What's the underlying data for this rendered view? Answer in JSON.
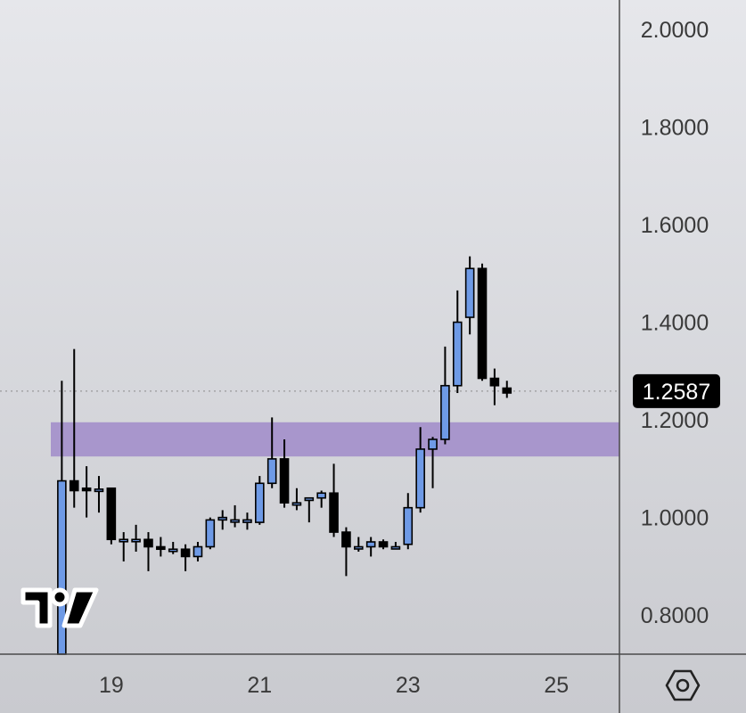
{
  "chart_data": {
    "type": "candlestick",
    "ylim": [
      0.72,
      2.06
    ],
    "y_ticks": [
      "2.0000",
      "1.8000",
      "1.6000",
      "1.4000",
      "1.2000",
      "1.0000",
      "0.8000"
    ],
    "x_ticks": [
      {
        "day": 19,
        "label": "19"
      },
      {
        "day": 21,
        "label": "21"
      },
      {
        "day": 23,
        "label": "23"
      },
      {
        "day": 25,
        "label": "25"
      }
    ],
    "x_range_days": [
      17.5,
      25.85
    ],
    "current_price": {
      "value": 1.2587,
      "label": "1.2587"
    },
    "zone": {
      "low": 1.125,
      "high": 1.195,
      "color": "#a38fca"
    },
    "colors": {
      "up": "#6e9ae6",
      "down": "#000000",
      "wick": "#000000",
      "background": "#d7d8dc"
    },
    "candles": [
      {
        "t": 18.3333,
        "o": 0.72,
        "h": 1.28,
        "l": 0.72,
        "c": 1.075
      },
      {
        "t": 18.5,
        "o": 1.075,
        "h": 1.345,
        "l": 1.02,
        "c": 1.055
      },
      {
        "t": 18.6667,
        "o": 1.06,
        "h": 1.105,
        "l": 1.0,
        "c": 1.055
      },
      {
        "t": 18.8333,
        "o": 1.058,
        "h": 1.085,
        "l": 1.01,
        "c": 1.058
      },
      {
        "t": 19.0,
        "o": 1.06,
        "h": 1.06,
        "l": 0.945,
        "c": 0.955
      },
      {
        "t": 19.1667,
        "o": 0.955,
        "h": 0.97,
        "l": 0.91,
        "c": 0.955
      },
      {
        "t": 19.3333,
        "o": 0.955,
        "h": 0.985,
        "l": 0.93,
        "c": 0.955
      },
      {
        "t": 19.5,
        "o": 0.955,
        "h": 0.97,
        "l": 0.89,
        "c": 0.94
      },
      {
        "t": 19.6667,
        "o": 0.94,
        "h": 0.96,
        "l": 0.92,
        "c": 0.935
      },
      {
        "t": 19.8333,
        "o": 0.935,
        "h": 0.95,
        "l": 0.925,
        "c": 0.935
      },
      {
        "t": 20.0,
        "o": 0.935,
        "h": 0.945,
        "l": 0.89,
        "c": 0.92
      },
      {
        "t": 20.1667,
        "o": 0.92,
        "h": 0.95,
        "l": 0.91,
        "c": 0.94
      },
      {
        "t": 20.3333,
        "o": 0.94,
        "h": 1.0,
        "l": 0.935,
        "c": 0.995
      },
      {
        "t": 20.5,
        "o": 0.995,
        "h": 1.015,
        "l": 0.975,
        "c": 1.0
      },
      {
        "t": 20.6667,
        "o": 0.995,
        "h": 1.025,
        "l": 0.98,
        "c": 0.995
      },
      {
        "t": 20.8333,
        "o": 0.99,
        "h": 1.01,
        "l": 0.975,
        "c": 0.995
      },
      {
        "t": 21.0,
        "o": 0.99,
        "h": 1.085,
        "l": 0.985,
        "c": 1.07
      },
      {
        "t": 21.1667,
        "o": 1.07,
        "h": 1.205,
        "l": 1.06,
        "c": 1.12
      },
      {
        "t": 21.3333,
        "o": 1.12,
        "h": 1.16,
        "l": 1.02,
        "c": 1.03
      },
      {
        "t": 21.5,
        "o": 1.03,
        "h": 1.06,
        "l": 1.015,
        "c": 1.03
      },
      {
        "t": 21.6667,
        "o": 1.035,
        "h": 1.04,
        "l": 0.99,
        "c": 1.04
      },
      {
        "t": 21.8333,
        "o": 1.04,
        "h": 1.055,
        "l": 1.02,
        "c": 1.05
      },
      {
        "t": 22.0,
        "o": 1.05,
        "h": 1.11,
        "l": 0.96,
        "c": 0.97
      },
      {
        "t": 22.1667,
        "o": 0.97,
        "h": 0.98,
        "l": 0.88,
        "c": 0.94
      },
      {
        "t": 22.3333,
        "o": 0.94,
        "h": 0.96,
        "l": 0.93,
        "c": 0.94
      },
      {
        "t": 22.5,
        "o": 0.94,
        "h": 0.96,
        "l": 0.92,
        "c": 0.95
      },
      {
        "t": 22.6667,
        "o": 0.95,
        "h": 0.955,
        "l": 0.935,
        "c": 0.94
      },
      {
        "t": 22.8333,
        "o": 0.94,
        "h": 0.95,
        "l": 0.935,
        "c": 0.94
      },
      {
        "t": 23.0,
        "o": 0.945,
        "h": 1.05,
        "l": 0.935,
        "c": 1.02
      },
      {
        "t": 23.1667,
        "o": 1.02,
        "h": 1.185,
        "l": 1.01,
        "c": 1.14
      },
      {
        "t": 23.3333,
        "o": 1.14,
        "h": 1.165,
        "l": 1.06,
        "c": 1.16
      },
      {
        "t": 23.5,
        "o": 1.16,
        "h": 1.35,
        "l": 1.15,
        "c": 1.27
      },
      {
        "t": 23.6667,
        "o": 1.27,
        "h": 1.465,
        "l": 1.255,
        "c": 1.4
      },
      {
        "t": 23.8333,
        "o": 1.41,
        "h": 1.535,
        "l": 1.375,
        "c": 1.51
      },
      {
        "t": 24.0,
        "o": 1.51,
        "h": 1.52,
        "l": 1.28,
        "c": 1.285
      },
      {
        "t": 24.1667,
        "o": 1.285,
        "h": 1.305,
        "l": 1.23,
        "c": 1.27
      },
      {
        "t": 24.3333,
        "o": 1.265,
        "h": 1.28,
        "l": 1.245,
        "c": 1.255
      }
    ]
  },
  "toolbar": {
    "settings_icon": "settings-hexagon-icon"
  },
  "branding": {
    "logo_icon": "tradingview-logo-icon"
  }
}
